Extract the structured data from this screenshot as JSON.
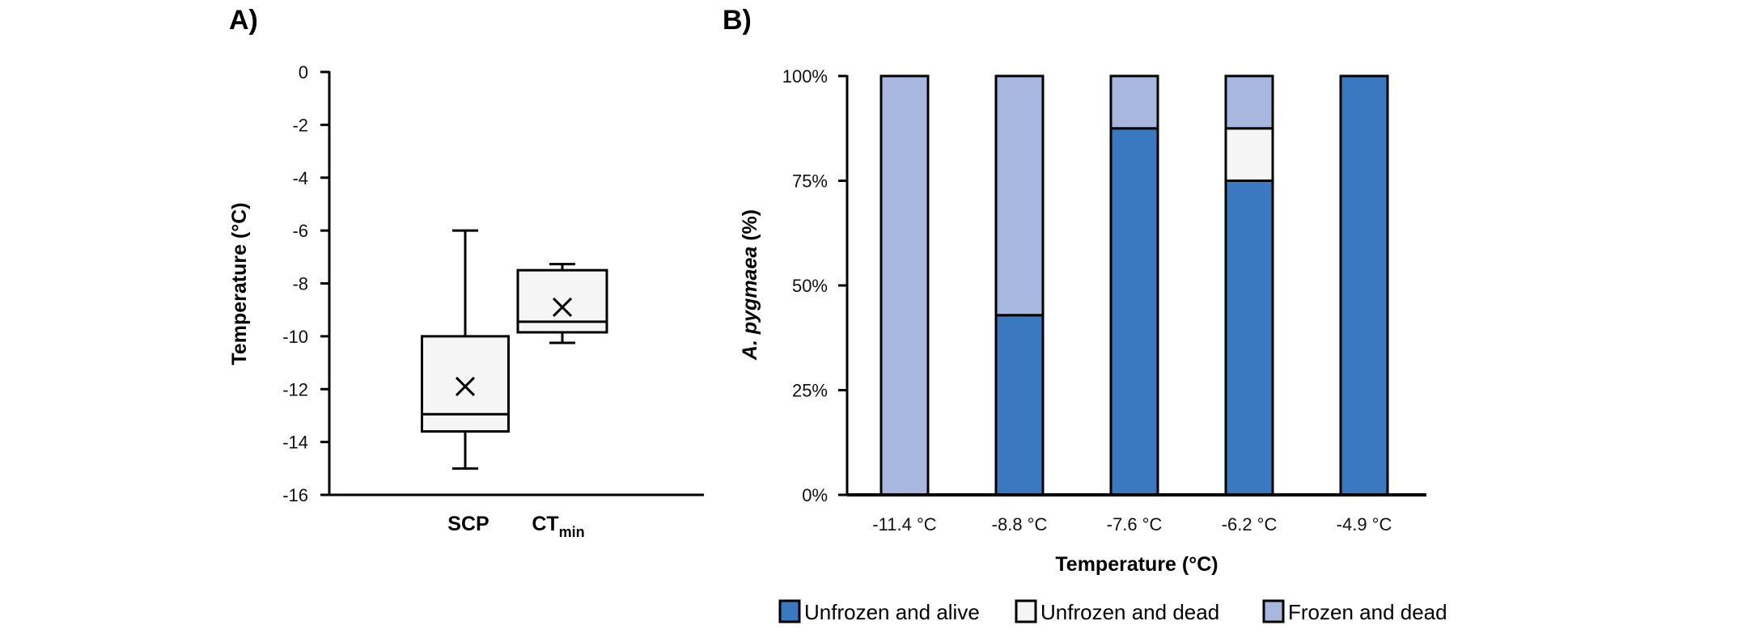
{
  "chart_data": [
    {
      "panel_label": "A)",
      "type": "box",
      "title": "",
      "xlabel": "",
      "ylabel": "Temperature (°C)",
      "ylim": [
        -16,
        0
      ],
      "yticks": [
        0,
        -2,
        -4,
        -6,
        -8,
        -10,
        -12,
        -14,
        -16
      ],
      "grid": false,
      "categories": [
        {
          "label": "SCP",
          "sub": ""
        },
        {
          "label": "CT",
          "sub": "min"
        }
      ],
      "boxes": [
        {
          "name": "SCP",
          "whisker_high": -6.0,
          "q3": -10.0,
          "median": -12.95,
          "q1": -13.6,
          "whisker_low": -15.0,
          "mean": -11.9
        },
        {
          "name": "CTmin",
          "whisker_high": -7.27,
          "q3": -7.5,
          "median": -9.45,
          "q1": -9.85,
          "whisker_low": -10.25,
          "mean": -8.9
        }
      ],
      "colors": {
        "box_fill": "#f5f5f5",
        "stroke": "#000000"
      }
    },
    {
      "panel_label": "B)",
      "type": "bar",
      "stacked": true,
      "title": "",
      "xlabel": "Temperature (°C)",
      "ylabel_italic": "A. pygmaea",
      "ylabel_rest": " (%)",
      "ylim": [
        0,
        100
      ],
      "yticks": [
        {
          "value": 0,
          "label": "0%"
        },
        {
          "value": 25,
          "label": "25%"
        },
        {
          "value": 50,
          "label": "50%"
        },
        {
          "value": 75,
          "label": "75%"
        },
        {
          "value": 100,
          "label": "100%"
        }
      ],
      "grid": false,
      "categories": [
        "-11.4 °C",
        "-8.8 °C",
        "-7.6 °C",
        "-6.2 °C",
        "-4.9 °C"
      ],
      "series": [
        {
          "name": "Unfrozen and alive",
          "color": "#3a78c0",
          "values": [
            0,
            42.9,
            87.5,
            75.0,
            100
          ]
        },
        {
          "name": "Unfrozen and dead",
          "color": "#f5f5f5",
          "values": [
            0,
            0,
            0,
            12.5,
            0
          ]
        },
        {
          "name": "Frozen and dead",
          "color": "#a7b7df",
          "values": [
            100,
            57.1,
            12.5,
            12.5,
            0
          ]
        }
      ],
      "legend_position": "bottom"
    }
  ]
}
